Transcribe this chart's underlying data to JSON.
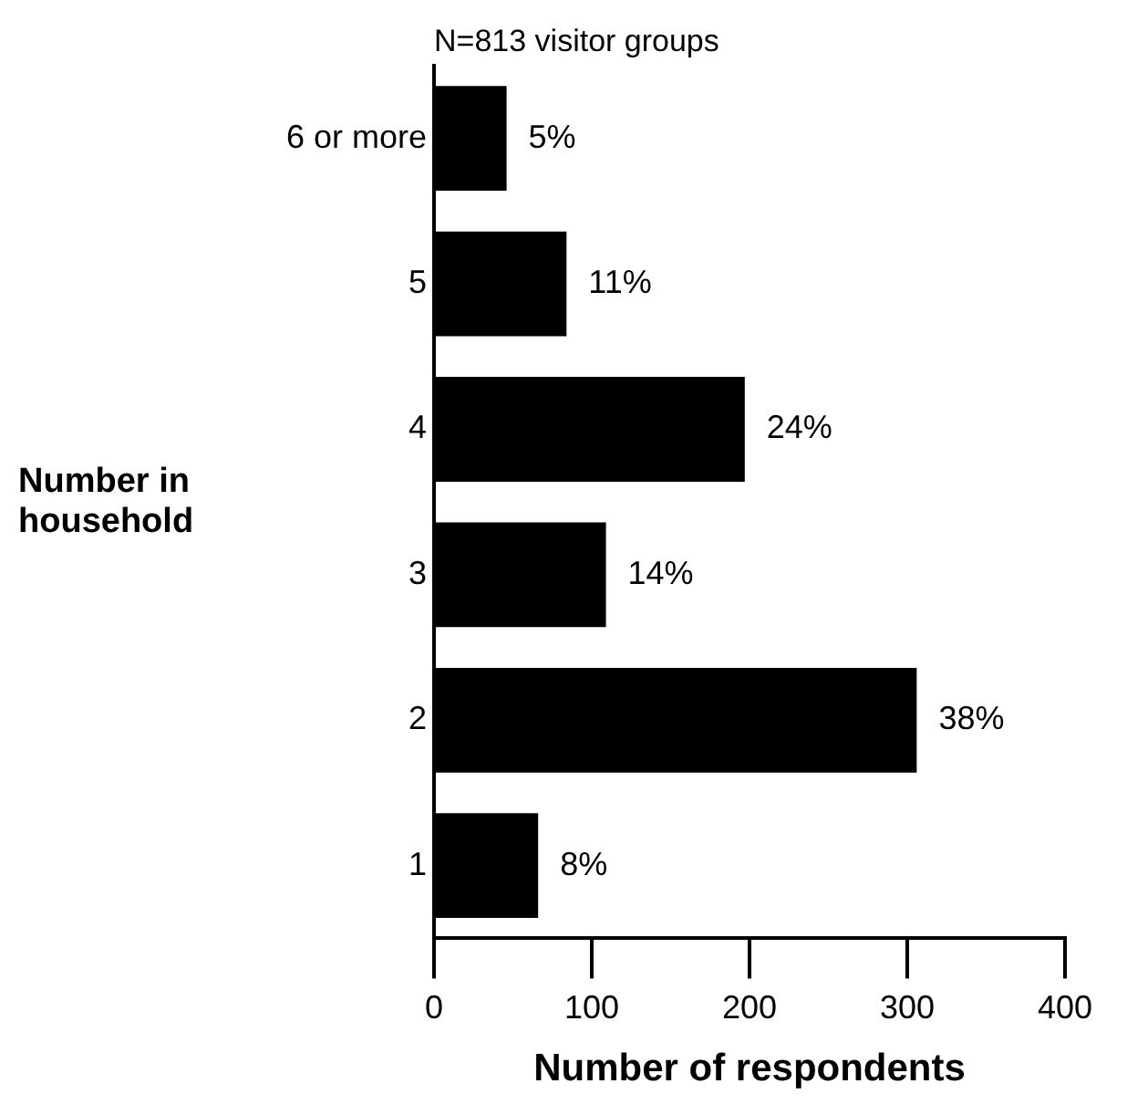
{
  "chart_data": {
    "type": "bar",
    "orientation": "horizontal",
    "title": "N=813 visitor groups",
    "xlabel": "Number of respondents",
    "ylabel": "Number in household",
    "categories": [
      "6 or more",
      "5",
      "4",
      "3",
      "2",
      "1"
    ],
    "values": [
      46,
      84,
      197,
      109,
      306,
      66
    ],
    "annotations": [
      {
        "text": "5%",
        "x": 46,
        "y": "6 or more"
      },
      {
        "text": "11%",
        "x": 84,
        "y": "5"
      },
      {
        "text": "24%",
        "x": 197,
        "y": "4"
      },
      {
        "text": "14%",
        "x": 109,
        "y": "3"
      },
      {
        "text": "38%",
        "x": 306,
        "y": "2"
      },
      {
        "text": "8%",
        "x": 66,
        "y": "1"
      }
    ],
    "color": "#000000",
    "xlim": [
      0,
      400
    ],
    "xticks": [
      0,
      100,
      200,
      300,
      400
    ],
    "grid": false,
    "legend": false
  }
}
